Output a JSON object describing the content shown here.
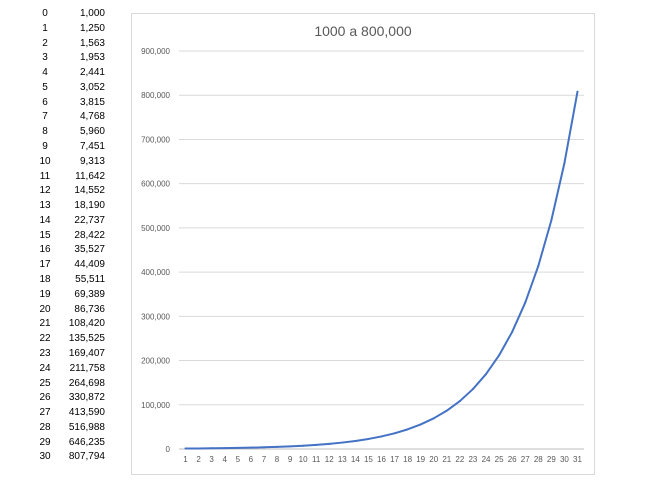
{
  "table": {
    "rows": [
      {
        "index": "0",
        "value": "1,000"
      },
      {
        "index": "1",
        "value": "1,250"
      },
      {
        "index": "2",
        "value": "1,563"
      },
      {
        "index": "3",
        "value": "1,953"
      },
      {
        "index": "4",
        "value": "2,441"
      },
      {
        "index": "5",
        "value": "3,052"
      },
      {
        "index": "6",
        "value": "3,815"
      },
      {
        "index": "7",
        "value": "4,768"
      },
      {
        "index": "8",
        "value": "5,960"
      },
      {
        "index": "9",
        "value": "7,451"
      },
      {
        "index": "10",
        "value": "9,313"
      },
      {
        "index": "11",
        "value": "11,642"
      },
      {
        "index": "12",
        "value": "14,552"
      },
      {
        "index": "13",
        "value": "18,190"
      },
      {
        "index": "14",
        "value": "22,737"
      },
      {
        "index": "15",
        "value": "28,422"
      },
      {
        "index": "16",
        "value": "35,527"
      },
      {
        "index": "17",
        "value": "44,409"
      },
      {
        "index": "18",
        "value": "55,511"
      },
      {
        "index": "19",
        "value": "69,389"
      },
      {
        "index": "20",
        "value": "86,736"
      },
      {
        "index": "21",
        "value": "108,420"
      },
      {
        "index": "22",
        "value": "135,525"
      },
      {
        "index": "23",
        "value": "169,407"
      },
      {
        "index": "24",
        "value": "211,758"
      },
      {
        "index": "25",
        "value": "264,698"
      },
      {
        "index": "26",
        "value": "330,872"
      },
      {
        "index": "27",
        "value": "413,590"
      },
      {
        "index": "28",
        "value": "516,988"
      },
      {
        "index": "29",
        "value": "646,235"
      },
      {
        "index": "30",
        "value": "807,794"
      }
    ]
  },
  "chart_data": {
    "type": "line",
    "title": "1000 a 800,000",
    "xlabel": "",
    "ylabel": "",
    "x": [
      1,
      2,
      3,
      4,
      5,
      6,
      7,
      8,
      9,
      10,
      11,
      12,
      13,
      14,
      15,
      16,
      17,
      18,
      19,
      20,
      21,
      22,
      23,
      24,
      25,
      26,
      27,
      28,
      29,
      30,
      31
    ],
    "series": [
      {
        "values": [
          1000,
          1250,
          1563,
          1953,
          2441,
          3052,
          3815,
          4768,
          5960,
          7451,
          9313,
          11642,
          14552,
          18190,
          22737,
          28422,
          35527,
          44409,
          55511,
          69389,
          86736,
          108420,
          135525,
          169407,
          211758,
          264698,
          330872,
          413590,
          516988,
          646235,
          807794
        ],
        "color": "#4472C4"
      }
    ],
    "ylim": [
      0,
      900000
    ],
    "yticks": [
      "0",
      "100,000",
      "200,000",
      "300,000",
      "400,000",
      "500,000",
      "600,000",
      "700,000",
      "800,000",
      "900,000"
    ],
    "grid": true,
    "legend": "none"
  }
}
